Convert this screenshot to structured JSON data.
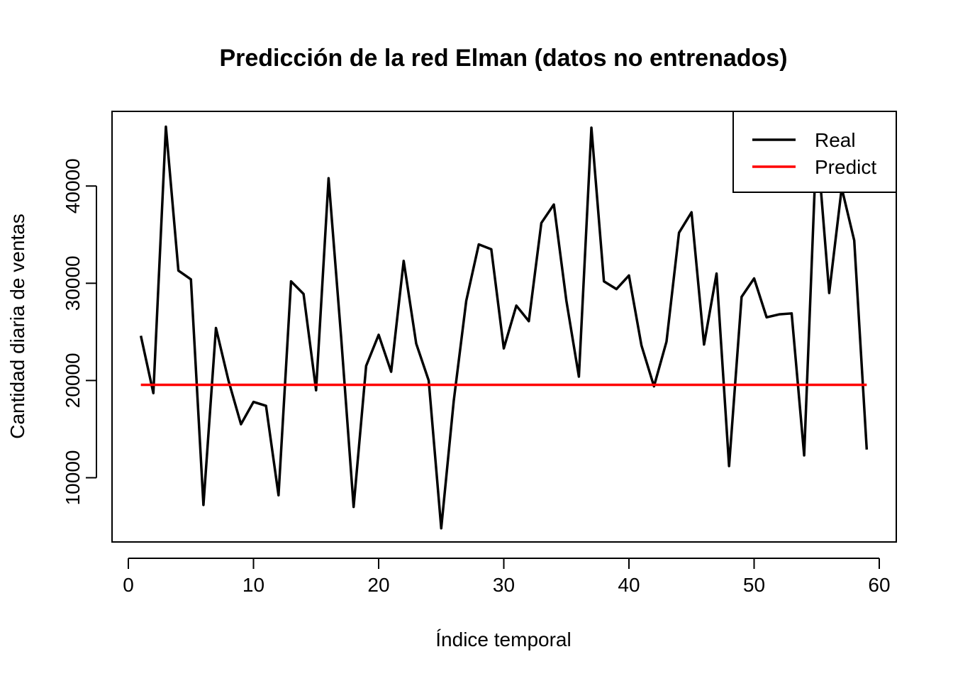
{
  "chart_data": {
    "type": "line",
    "title": "Predicción de la red Elman (datos no entrenados)",
    "xlabel": "Índice temporal",
    "ylabel": "Cantidad diaria de ventas",
    "xlim": [
      0,
      60
    ],
    "ylim": [
      5000,
      46000
    ],
    "xticks": [
      "0",
      "10",
      "20",
      "30",
      "40",
      "50",
      "60"
    ],
    "yticks": [
      "10000",
      "20000",
      "30000",
      "40000"
    ],
    "grid": false,
    "legend_position": "top-right",
    "x": [
      1,
      2,
      3,
      4,
      5,
      6,
      7,
      8,
      9,
      10,
      11,
      12,
      13,
      14,
      15,
      16,
      17,
      18,
      19,
      20,
      21,
      22,
      23,
      24,
      25,
      26,
      27,
      28,
      29,
      30,
      31,
      32,
      33,
      34,
      35,
      36,
      37,
      38,
      39,
      40,
      41,
      42,
      43,
      44,
      45,
      46,
      47,
      48,
      49,
      50,
      51,
      52,
      53,
      54,
      55,
      56,
      57,
      58,
      59
    ],
    "series": [
      {
        "name": "Real",
        "color": "#000000",
        "values": [
          24600,
          18700,
          46100,
          31300,
          30400,
          7200,
          25400,
          20000,
          15500,
          17800,
          17400,
          8200,
          30200,
          28900,
          19000,
          40800,
          24500,
          7000,
          21500,
          24700,
          20900,
          32300,
          23800,
          20000,
          4800,
          17900,
          28200,
          34000,
          33500,
          23300,
          27700,
          26100,
          36200,
          38100,
          28200,
          20400,
          46000,
          30200,
          29400,
          30800,
          23600,
          19400,
          24000,
          35200,
          37300,
          23700,
          31000,
          11200,
          28600,
          30500,
          26500,
          26800,
          26900,
          12300,
          45000,
          29000,
          39800,
          34400,
          12900
        ]
      },
      {
        "name": "Predict",
        "color": "#ff0000",
        "values": [
          19550,
          19550,
          19550,
          19550,
          19550,
          19550,
          19550,
          19550,
          19550,
          19550,
          19550,
          19550,
          19550,
          19550,
          19550,
          19550,
          19550,
          19550,
          19550,
          19550,
          19550,
          19550,
          19550,
          19550,
          19550,
          19550,
          19550,
          19550,
          19550,
          19550,
          19550,
          19550,
          19550,
          19550,
          19550,
          19550,
          19550,
          19550,
          19550,
          19550,
          19550,
          19550,
          19550,
          19550,
          19550,
          19550,
          19550,
          19550,
          19550,
          19550,
          19550,
          19550,
          19550,
          19550,
          19550,
          19550,
          19550,
          19550,
          19550
        ]
      }
    ]
  }
}
